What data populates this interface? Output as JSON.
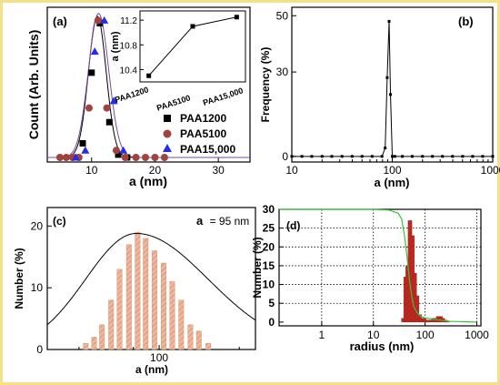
{
  "colors": {
    "frame": "#f3e089",
    "axis": "#000000",
    "a_line_black": "#000000",
    "a_line_purple": "#7a4a9a",
    "a_square": "#000000",
    "a_circle": "#a0433e",
    "a_triangle": "#2a2ae8",
    "c_bar_fill": "#f4b3a8",
    "c_bar_hatch": "#c8934a",
    "c_curve": "#000000",
    "d_bar_fill": "#d42020",
    "d_bar_hatch": "#6b3b1e",
    "d_curve": "#3fbf3f",
    "grid": "#000000"
  },
  "chart_data": [
    {
      "panel": "(a)",
      "type": "scatter",
      "xlabel": "a (nm)",
      "ylabel": "Count (Arb. Units)",
      "xlim": [
        3,
        35
      ],
      "ylim": [
        0,
        1.05
      ],
      "x_ticks": [
        10,
        20,
        30
      ],
      "series": [
        {
          "name": "PAA1200",
          "marker": "square",
          "x": [
            7.2,
            8.6,
            10.0,
            11.3,
            12.8,
            14.2,
            15.6
          ],
          "y": [
            0.0,
            0.1,
            0.6,
            0.95,
            0.25,
            0.02,
            0.0
          ]
        },
        {
          "name": "PAA5100",
          "marker": "circle",
          "x": [
            5.0,
            6.0,
            7.0,
            8.0,
            9.6,
            11.0,
            12.4,
            13.9,
            15.3,
            17.0,
            18.5,
            20.0,
            21.5
          ],
          "y": [
            0.0,
            0.0,
            0.0,
            0.0,
            0.35,
            0.97,
            0.35,
            0.05,
            0.0,
            0.0,
            0.0,
            0.0,
            0.0
          ]
        },
        {
          "name": "PAA15,000",
          "marker": "triangle",
          "x": [
            7.5,
            9.0,
            10.5,
            12.0,
            13.5,
            15.0
          ],
          "y": [
            0.0,
            0.05,
            0.75,
            0.97,
            0.4,
            0.05
          ]
        }
      ],
      "fit_curves": [
        {
          "color": "black",
          "center": 10.9,
          "width": 1.4,
          "amplitude": 1.0
        },
        {
          "color": "purple",
          "center": 11.1,
          "width": 1.6,
          "amplitude": 1.02
        }
      ],
      "legend": [
        "PAA1200",
        "PAA5100",
        "PAA15,000"
      ],
      "legend_position": "right",
      "inset": {
        "type": "line",
        "ylabel": "a (nm)",
        "categories": [
          "PAA1200",
          "PAA5100",
          "PAA15,000"
        ],
        "values": [
          10.3,
          11.1,
          11.25
        ],
        "ylim": [
          10.2,
          11.35
        ],
        "y_ticks": [
          10.4,
          10.8,
          11.2
        ]
      }
    },
    {
      "panel": "(b)",
      "type": "line",
      "xlabel": "a (nm)",
      "ylabel": "Frequency (%)",
      "x_scale": "log",
      "xlim": [
        10,
        1000
      ],
      "ylim": [
        -2,
        53
      ],
      "x_ticks": [
        10,
        100,
        1000
      ],
      "y_ticks": [
        0,
        30,
        50
      ],
      "x": [
        10,
        12.6,
        15.8,
        20,
        25,
        31.6,
        39.8,
        50,
        63,
        79,
        85,
        89,
        93,
        96,
        100,
        106,
        126,
        158,
        200,
        251,
        316,
        398,
        501,
        631,
        794,
        1000
      ],
      "y": [
        0,
        0,
        0,
        0,
        0,
        0,
        0,
        0,
        0,
        0,
        3,
        28,
        48,
        22,
        0,
        0,
        0,
        0,
        0,
        0,
        0,
        0,
        0,
        0,
        0,
        0
      ]
    },
    {
      "panel": "(c)",
      "type": "bar",
      "annotation": "a = 95 nm",
      "annotation_bold": "a",
      "annotation_rest": "= 95 nm",
      "xlabel": "a (nm)",
      "ylabel": "Number (%)",
      "x_scale": "log",
      "xlim": [
        38,
        230
      ],
      "ylim": [
        0,
        23
      ],
      "x_ticks": [
        100
      ],
      "y_ticks": [
        0,
        10,
        20
      ],
      "bar_x": [
        53,
        57,
        61,
        66,
        71,
        77,
        83,
        89,
        96,
        104,
        112,
        121,
        131,
        141,
        153
      ],
      "values": [
        1,
        2,
        4,
        8,
        13,
        17,
        19,
        18,
        16,
        14,
        11,
        8,
        4,
        3,
        1
      ],
      "fit_curve": {
        "center": 82,
        "log_width_left": 0.19,
        "log_width_right": 0.27,
        "amplitude": 18.8
      }
    },
    {
      "panel": "(d)",
      "type": "bar",
      "xlabel": "radius (nm)",
      "ylabel": "Number (%)",
      "x_scale": "log",
      "xlim": [
        0.15,
        1200
      ],
      "ylim": [
        -1,
        30
      ],
      "x_ticks": [
        1,
        10,
        100,
        1000
      ],
      "y_ticks": [
        0,
        5,
        10,
        15,
        20,
        25,
        30
      ],
      "grid": true,
      "bar_x": [
        38,
        42,
        46,
        51,
        57,
        63,
        70,
        78,
        86,
        96,
        106,
        118,
        131,
        145,
        161,
        179,
        199,
        221,
        245,
        272
      ],
      "values": [
        1,
        12,
        15,
        27,
        23,
        13,
        7,
        2,
        1,
        1,
        0.5,
        0.5,
        0.5,
        1,
        1,
        1.5,
        1.5,
        1,
        0.5,
        0.3
      ],
      "cumulative_curve": {
        "x": [
          0.15,
          1,
          10,
          20,
          30,
          35,
          40,
          45,
          50,
          55,
          60,
          70,
          80,
          100,
          150,
          200,
          300,
          500,
          1000
        ],
        "y": [
          30,
          30,
          30,
          29.8,
          29,
          27.5,
          23,
          17,
          11,
          7,
          4.2,
          2.5,
          1.6,
          1.1,
          0.7,
          0.5,
          0.2,
          0.1,
          0
        ]
      }
    }
  ]
}
